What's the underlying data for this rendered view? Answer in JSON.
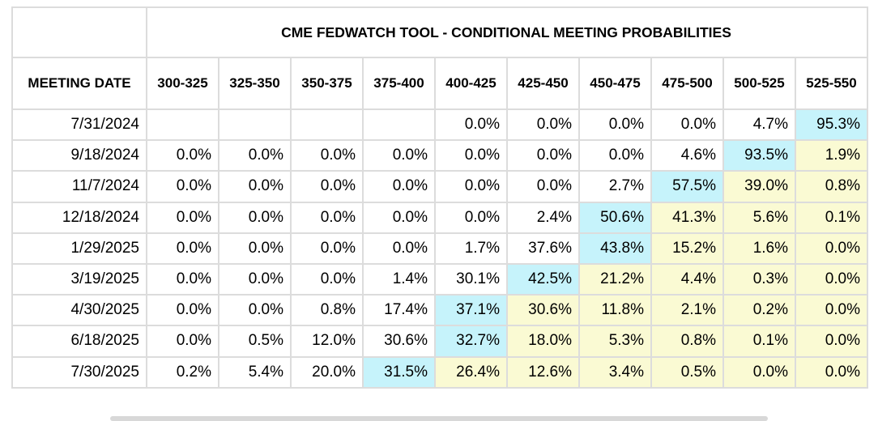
{
  "table": {
    "title": "CME FEDWATCH TOOL - CONDITIONAL MEETING PROBABILITIES",
    "date_header": "MEETING DATE",
    "columns": [
      "300-325",
      "325-350",
      "350-375",
      "375-400",
      "400-425",
      "425-450",
      "450-475",
      "475-500",
      "500-525",
      "525-550"
    ],
    "colors": {
      "cyan": "#c6f3fb",
      "yellow": "#fafad3",
      "border": "#dcdcdc"
    },
    "rows": [
      {
        "date": "7/31/2024",
        "cells": [
          "",
          "",
          "",
          "",
          "0.0%",
          "0.0%",
          "0.0%",
          "0.0%",
          "4.7%",
          "95.3%"
        ],
        "shade": [
          "",
          "",
          "",
          "",
          "",
          "",
          "",
          "",
          "",
          "cyan"
        ]
      },
      {
        "date": "9/18/2024",
        "cells": [
          "0.0%",
          "0.0%",
          "0.0%",
          "0.0%",
          "0.0%",
          "0.0%",
          "0.0%",
          "4.6%",
          "93.5%",
          "1.9%"
        ],
        "shade": [
          "",
          "",
          "",
          "",
          "",
          "",
          "",
          "",
          "cyan",
          "yellow"
        ]
      },
      {
        "date": "11/7/2024",
        "cells": [
          "0.0%",
          "0.0%",
          "0.0%",
          "0.0%",
          "0.0%",
          "0.0%",
          "2.7%",
          "57.5%",
          "39.0%",
          "0.8%"
        ],
        "shade": [
          "",
          "",
          "",
          "",
          "",
          "",
          "",
          "cyan",
          "yellow",
          "yellow"
        ]
      },
      {
        "date": "12/18/2024",
        "cells": [
          "0.0%",
          "0.0%",
          "0.0%",
          "0.0%",
          "0.0%",
          "2.4%",
          "50.6%",
          "41.3%",
          "5.6%",
          "0.1%"
        ],
        "shade": [
          "",
          "",
          "",
          "",
          "",
          "",
          "cyan",
          "yellow",
          "yellow",
          "yellow"
        ]
      },
      {
        "date": "1/29/2025",
        "cells": [
          "0.0%",
          "0.0%",
          "0.0%",
          "0.0%",
          "1.7%",
          "37.6%",
          "43.8%",
          "15.2%",
          "1.6%",
          "0.0%"
        ],
        "shade": [
          "",
          "",
          "",
          "",
          "",
          "",
          "cyan",
          "yellow",
          "yellow",
          "yellow"
        ]
      },
      {
        "date": "3/19/2025",
        "cells": [
          "0.0%",
          "0.0%",
          "0.0%",
          "1.4%",
          "30.1%",
          "42.5%",
          "21.2%",
          "4.4%",
          "0.3%",
          "0.0%"
        ],
        "shade": [
          "",
          "",
          "",
          "",
          "",
          "cyan",
          "yellow",
          "yellow",
          "yellow",
          "yellow"
        ]
      },
      {
        "date": "4/30/2025",
        "cells": [
          "0.0%",
          "0.0%",
          "0.8%",
          "17.4%",
          "37.1%",
          "30.6%",
          "11.8%",
          "2.1%",
          "0.2%",
          "0.0%"
        ],
        "shade": [
          "",
          "",
          "",
          "",
          "cyan",
          "yellow",
          "yellow",
          "yellow",
          "yellow",
          "yellow"
        ]
      },
      {
        "date": "6/18/2025",
        "cells": [
          "0.0%",
          "0.5%",
          "12.0%",
          "30.6%",
          "32.7%",
          "18.0%",
          "5.3%",
          "0.8%",
          "0.1%",
          "0.0%"
        ],
        "shade": [
          "",
          "",
          "",
          "",
          "cyan",
          "yellow",
          "yellow",
          "yellow",
          "yellow",
          "yellow"
        ]
      },
      {
        "date": "7/30/2025",
        "cells": [
          "0.2%",
          "5.4%",
          "20.0%",
          "31.5%",
          "26.4%",
          "12.6%",
          "3.4%",
          "0.5%",
          "0.0%",
          "0.0%"
        ],
        "shade": [
          "",
          "",
          "",
          "cyan",
          "yellow",
          "yellow",
          "yellow",
          "yellow",
          "yellow",
          "yellow"
        ]
      }
    ]
  }
}
